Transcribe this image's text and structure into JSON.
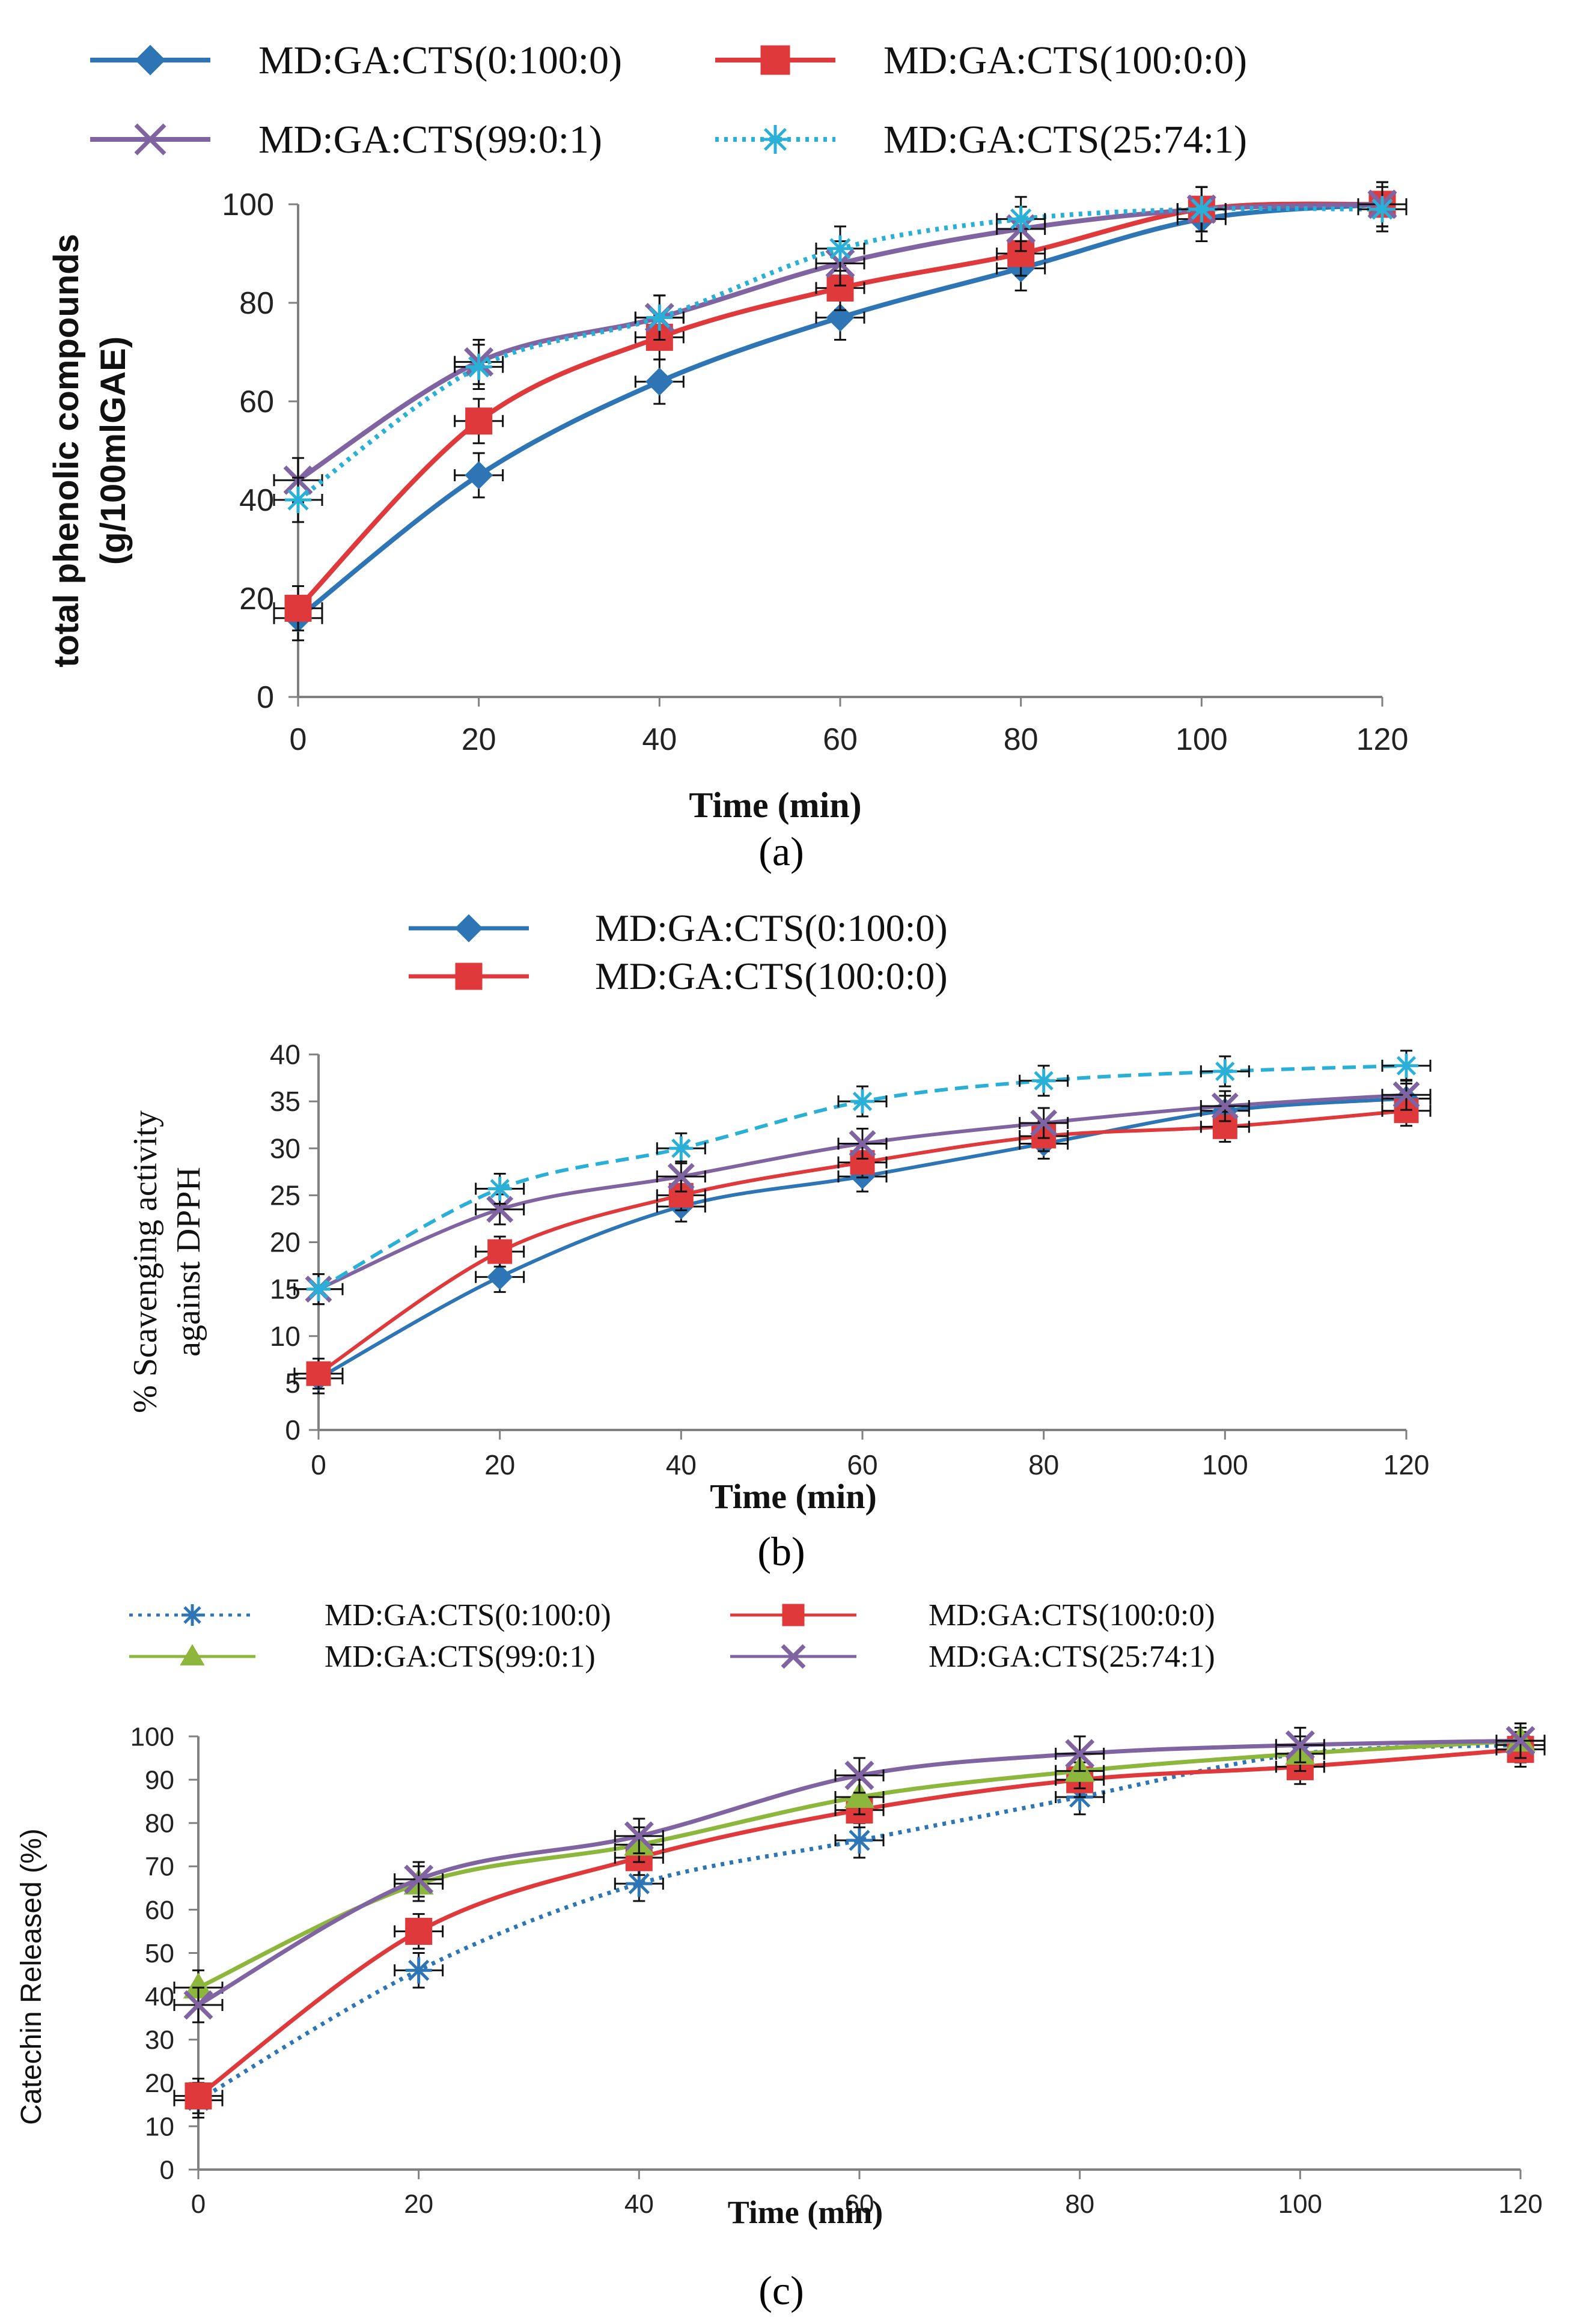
{
  "figure": {
    "panel_labels": [
      "(a)",
      "(b)",
      "(c)"
    ]
  },
  "chart_data": [
    {
      "type": "line",
      "panel": "(a)",
      "title": "",
      "xlabel": "Time (min)",
      "ylabel_lines": [
        "total phenolic compounds",
        "(g/100mlGAE)"
      ],
      "x": [
        0,
        20,
        40,
        60,
        80,
        100,
        120
      ],
      "xlim": [
        0,
        120
      ],
      "ylim": [
        0,
        100
      ],
      "xticks": [
        0,
        20,
        40,
        60,
        80,
        100,
        120
      ],
      "yticks": [
        0,
        20,
        40,
        60,
        80,
        100
      ],
      "legend": "top",
      "series": [
        {
          "name": "MD:GA:CTS(0:100:0)",
          "color": "#2E75B6",
          "marker": "diamond",
          "dash": "solid",
          "values": [
            16,
            45,
            64,
            77,
            87,
            97,
            100
          ]
        },
        {
          "name": "MD:GA:CTS(100:0:0)",
          "color": "#E0393B",
          "marker": "square",
          "dash": "solid",
          "values": [
            18,
            56,
            73,
            83,
            90,
            99,
            100
          ]
        },
        {
          "name": "MD:GA:CTS(99:0:1)",
          "color": "#8064A2",
          "marker": "x",
          "dash": "solid",
          "values": [
            44,
            68,
            77,
            88,
            95,
            99,
            100
          ]
        },
        {
          "name": "MD:GA:CTS(25:74:1)",
          "color": "#2AB0D6",
          "marker": "star",
          "dash": "dotted",
          "values": [
            40,
            67,
            77,
            91,
            97,
            99,
            99
          ]
        }
      ]
    },
    {
      "type": "line",
      "panel": "(b)",
      "title": "",
      "xlabel": "Time (min)",
      "ylabel_lines": [
        "% Scavenging activity",
        "against DPPH"
      ],
      "x": [
        0,
        20,
        40,
        60,
        80,
        100,
        120
      ],
      "xlim": [
        0,
        120
      ],
      "ylim": [
        0,
        40
      ],
      "xticks": [
        0,
        20,
        40,
        60,
        80,
        100,
        120
      ],
      "yticks": [
        0,
        5,
        10,
        15,
        20,
        25,
        30,
        35,
        40
      ],
      "legend": "top",
      "series": [
        {
          "name": "MD:GA:CTS(0:100:0)",
          "color": "#2E75B6",
          "marker": "diamond",
          "dash": "solid",
          "values": [
            5.5,
            16.3,
            23.8,
            27,
            30.5,
            34,
            35.3
          ]
        },
        {
          "name": "MD:GA:CTS(100:0:0)",
          "color": "#E0393B",
          "marker": "square",
          "dash": "solid",
          "values": [
            6,
            19,
            25,
            28.5,
            31.3,
            32.3,
            34
          ]
        },
        {
          "name": "",
          "color": "#8064A2",
          "marker": "x",
          "dash": "solid",
          "values": [
            15,
            23.5,
            27,
            30.5,
            32.7,
            34.5,
            35.7
          ]
        },
        {
          "name": "",
          "color": "#2AB0D6",
          "marker": "star",
          "dash": "dashed",
          "values": [
            15,
            25.7,
            30,
            35,
            37.2,
            38.2,
            38.8
          ]
        }
      ]
    },
    {
      "type": "line",
      "panel": "(c)",
      "title": "",
      "xlabel": "Time (min)",
      "ylabel": "Catechin Released (%)",
      "x": [
        0,
        20,
        40,
        60,
        80,
        100,
        120
      ],
      "xlim": [
        0,
        120
      ],
      "ylim": [
        0,
        100
      ],
      "xticks": [
        0,
        20,
        40,
        60,
        80,
        100,
        120
      ],
      "yticks": [
        0,
        10,
        20,
        30,
        40,
        50,
        60,
        70,
        80,
        90,
        100
      ],
      "legend": "top",
      "series": [
        {
          "name": "MD:GA:CTS(0:100:0)",
          "color": "#2E75B6",
          "marker": "star",
          "dash": "dotted",
          "values": [
            16,
            46,
            66,
            76,
            86,
            96,
            98
          ]
        },
        {
          "name": "MD:GA:CTS(100:0:0)",
          "color": "#E0393B",
          "marker": "square",
          "dash": "solid",
          "values": [
            17,
            55,
            72,
            83,
            90,
            93,
            97
          ]
        },
        {
          "name": "MD:GA:CTS(99:0:1)",
          "color": "#8DB63C",
          "marker": "triangle",
          "dash": "solid",
          "values": [
            42,
            66,
            75,
            86,
            92,
            96,
            99
          ]
        },
        {
          "name": "MD:GA:CTS(25:74:1)",
          "color": "#8064A2",
          "marker": "x",
          "dash": "solid",
          "values": [
            38,
            67,
            77,
            91,
            96,
            98,
            99
          ]
        }
      ]
    }
  ]
}
